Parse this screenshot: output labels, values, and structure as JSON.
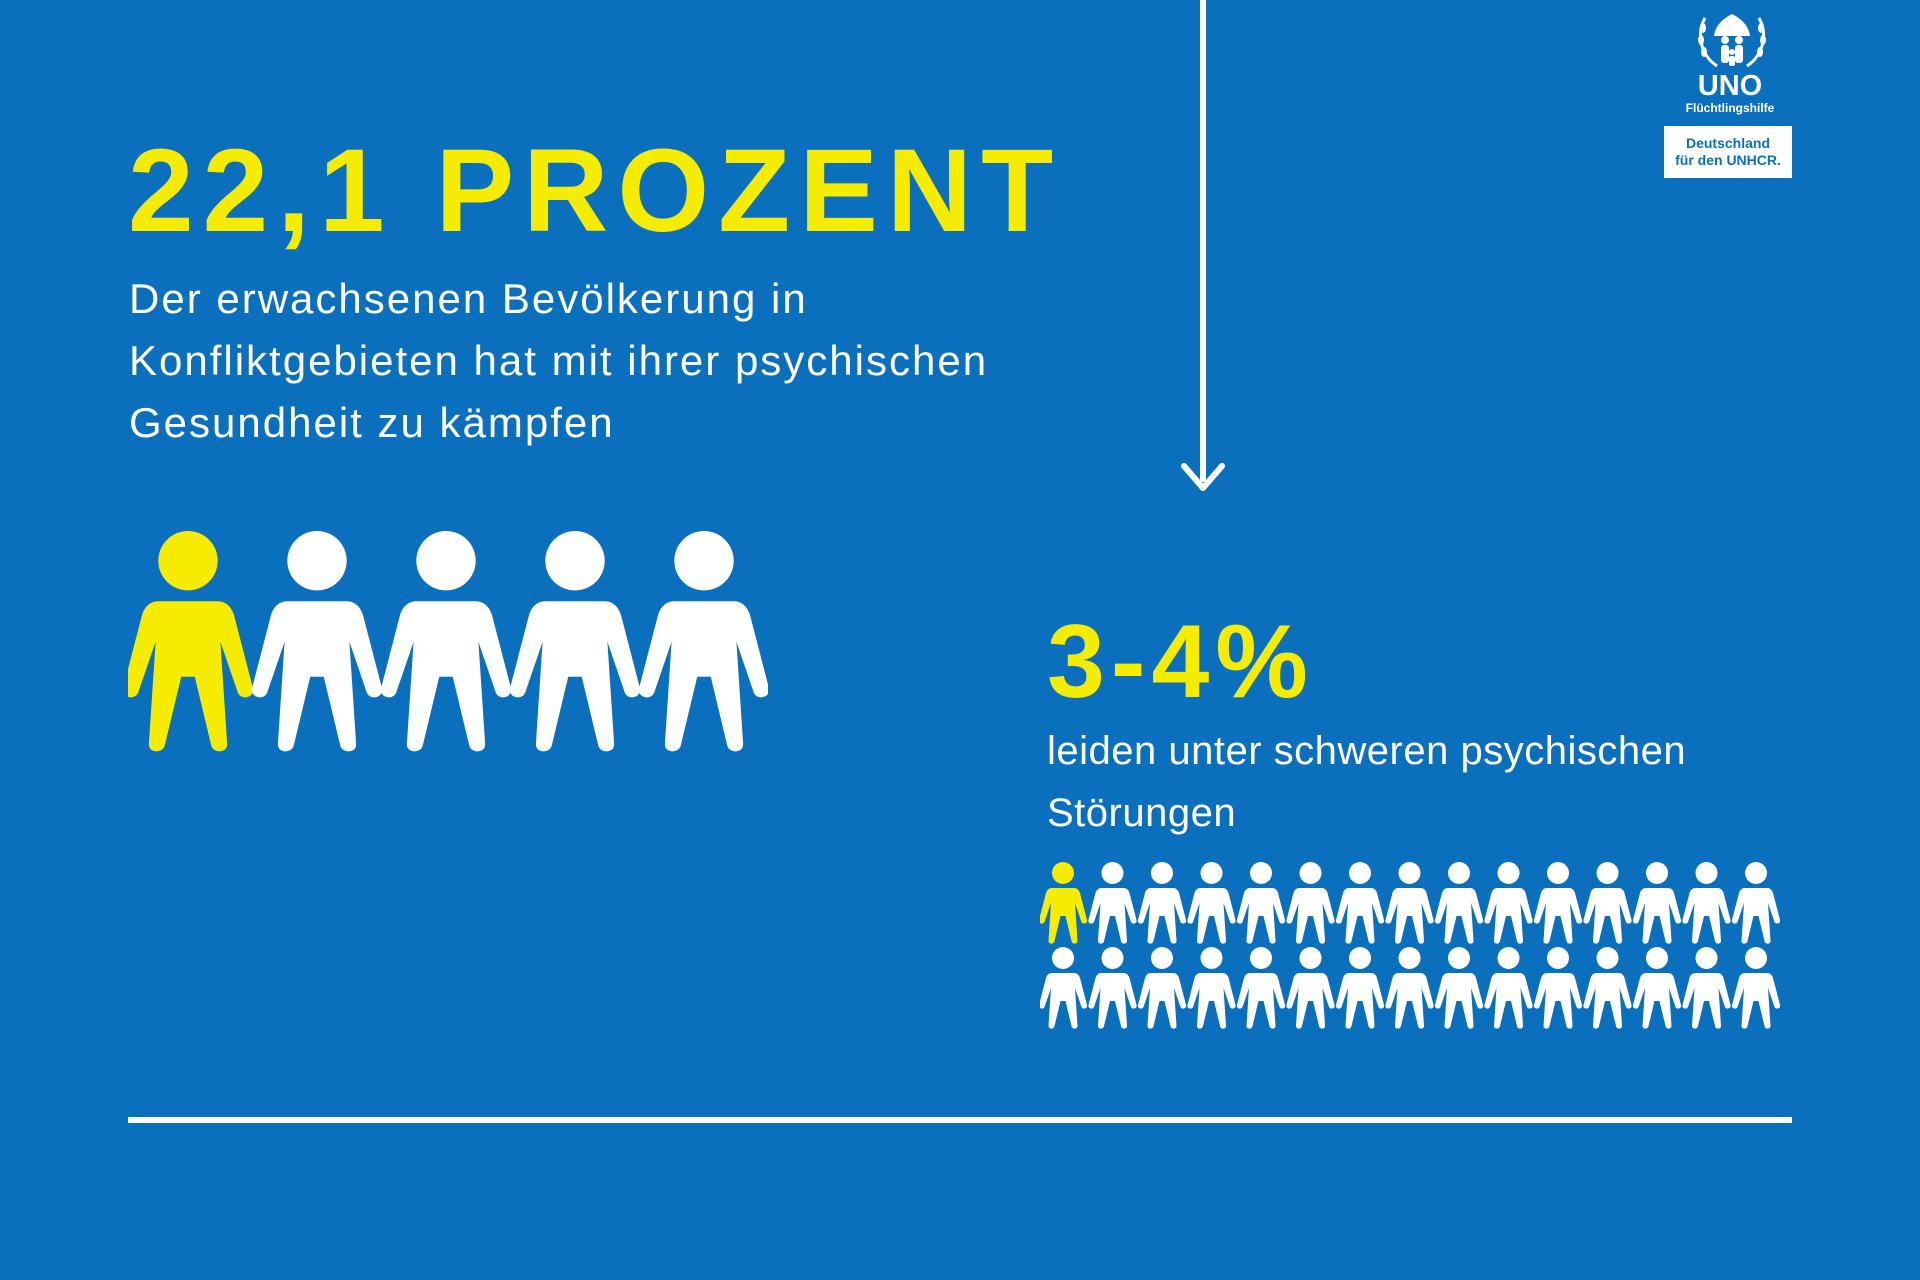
{
  "headline": "22,1 PROZENT",
  "subtext": "Der erwachsenen Bevölkerung in Konfliktgebieten hat mit ihrer psychischen Gesundheit zu kämpfen",
  "headline2": "3-4%",
  "subtext2": "leiden unter schweren psychischen Störungen",
  "logo": {
    "title": "UNO",
    "subtitle": "Flüchtlingshilfe",
    "box_line1": "Deutschland",
    "box_line2": "für den UNHCR."
  },
  "icons": {
    "emblem": "unhcr-emblem-icon",
    "arrow": "down-arrow-icon",
    "person": "person-icon"
  },
  "pictogram_large": {
    "total": 5,
    "highlighted": 1
  },
  "pictogram_small": {
    "total": 30,
    "highlighted": 1
  },
  "colors": {
    "background": "#0a70bd",
    "accent": "#f5ec00",
    "text": "#ffffff"
  }
}
